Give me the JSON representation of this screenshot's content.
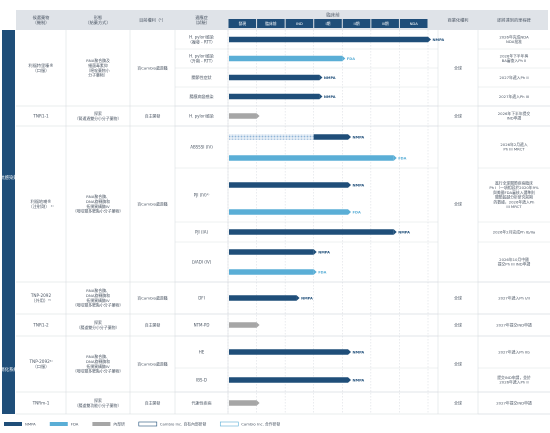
{
  "colors": {
    "nmpa": "#1f4e79",
    "fda": "#5aaed6",
    "internal": "#a6a6a6",
    "header_bg": "#dfe3e8",
    "phase_bg": "#1f4e79",
    "side_bg": "#1f4e79",
    "text": "#4a5563",
    "grid": "#c9ced6",
    "row_line": "#d5d9de"
  },
  "header": {
    "col1": "候選藥物\n（機制）",
    "col2": "形態\n（給藥方式）",
    "col3": "目前權利（¹）",
    "col4": "適應症\n（試驗）",
    "col5": "臨床前",
    "col_rights": "商業化權利",
    "col_status": "即將達到的里程碑"
  },
  "phase_labels": [
    "發現",
    "臨床前",
    "IND",
    "I期",
    "II期",
    "III期",
    "NDA"
  ],
  "side_labels": {
    "top": "抗感染藥",
    "bottom": "消化系統"
  },
  "legend": {
    "nmpa": "NMPA",
    "fda": "FDA",
    "internal": "內部研",
    "cam_internal": "Cambio Inc. 自有內部研發",
    "cam_partner": "Cambio Inc. 合作研發"
  },
  "chart_data": {
    "type": "bar",
    "phases": [
      "發現",
      "臨床前",
      "IND",
      "I期",
      "II期",
      "III期",
      "NDA"
    ],
    "rows": [
      {
        "drug": "利福特里嗪®\n（口服）",
        "form": "RNA聚合酶及\n細菌毒素抑\n（嘧啶藥物小\n分子藥物）",
        "rights": "百Cambio處遊籍",
        "indication": "H. pylori感染\n（複發 - RTT）",
        "bars": [
          {
            "track": "NMPA",
            "phase_value": 7.0,
            "label": "NMPA"
          }
        ],
        "commercial": "全球",
        "milestone": "2026年完成NDA\nNDA批准"
      },
      {
        "drug": "",
        "form": "",
        "rights": "",
        "indication": "H. pylori感染\n（升期 - RTT）",
        "bars": [
          {
            "track": "FDA",
            "phase_value": 4.0,
            "label": "FDA"
          }
        ],
        "commercial": "",
        "milestone": "2026年下半年與\nBA審查入Ph II"
      },
      {
        "drug": "",
        "form": "",
        "rights": "",
        "indication": "關節性症狀",
        "bars": [
          {
            "track": "NMPA",
            "phase_value": 3.2,
            "label": "NMPA"
          }
        ],
        "commercial": "",
        "milestone": "2027年遞入Ph II"
      },
      {
        "drug": "",
        "form": "",
        "rights": "",
        "indication": "腸膜病變感染",
        "bars": [
          {
            "track": "NMPA",
            "phase_value": 3.2,
            "label": "NMPA"
          }
        ],
        "commercial": "",
        "milestone": "2027年遞入Ph III"
      },
      {
        "drug": "TNR1-1",
        "form": "探索\n（腎通過雙分小分子藥物）",
        "rights": "自主開發",
        "indication": "H. pylori感染",
        "bars": [
          {
            "track": "internal",
            "phase_value": 1.0,
            "label": ""
          }
        ],
        "commercial": "全球",
        "milestone": "2026年下半年提交\nIND申請"
      },
      {
        "drug": "利福地喇®\n（注射劑） ²⁾",
        "form": "RNA聚合酶、\nDNA旋轉酶和\n拓撲異構酶IV\n（嘧啶類多靶點小分子藥物）",
        "rights": "百Cambio處遊籍",
        "indication": "ABSSSI (IV)",
        "bars": [
          {
            "track": "internal_hatch",
            "phase_value": 3.0,
            "label": ""
          },
          {
            "track": "NMPA",
            "phase_value": 4.2,
            "label": "NMPA"
          }
        ],
        "commercial": "全球",
        "milestone": "2026年2月遞入\nPh III MRCT"
      },
      {
        "drug": "",
        "form": "",
        "rights": "",
        "indication": "",
        "bars": [
          {
            "track": "FDA",
            "phase_value": 5.8,
            "label": "FDA"
          }
        ],
        "commercial": "",
        "milestone": ""
      },
      {
        "drug": "",
        "form": "",
        "rights": "",
        "indication": "PJI (IV)²⁾",
        "bars": [
          {
            "track": "NMPA",
            "phase_value": 4.2,
            "label": "NMPA"
          }
        ],
        "commercial": "",
        "milestone": "進行全球關節疾病臨床\nPh I（一項相容於2020年9%\n與美國FDA審核入選準則\n關節超越分析研究前期\n的數據，2026年遞入Ph\nIII MRCT"
      },
      {
        "drug": "",
        "form": "",
        "rights": "",
        "indication": "",
        "bars": [
          {
            "track": "FDA",
            "phase_value": 4.2,
            "label": "FDA"
          }
        ],
        "commercial": "",
        "milestone": ""
      },
      {
        "drug": "",
        "form": "",
        "rights": "",
        "indication": "PJI (IA)",
        "bars": [
          {
            "track": "NMPA",
            "phase_value": 5.8,
            "label": "NMPA"
          }
        ],
        "commercial": "",
        "milestone": "2026年2月完成Ph Ib/IIa"
      },
      {
        "drug": "",
        "form": "",
        "rights": "",
        "indication": "LVADI (IV)",
        "bars": [
          {
            "track": "NMPA",
            "phase_value": 3.0,
            "label": "NMPA"
          }
        ],
        "commercial": "",
        "milestone": "2026年10月中國\n提交Ph III IND申請"
      },
      {
        "drug": "",
        "form": "",
        "rights": "",
        "indication": "",
        "bars": [
          {
            "track": "FDA",
            "phase_value": 3.0,
            "label": "FDA"
          }
        ],
        "commercial": "",
        "milestone": ""
      },
      {
        "drug": "TNP-2092\n（外用）³⁾",
        "form": "RNA聚合酶、\nDNA旋轉酶和\n拓撲異構酶IV\n（嘧啶類多靶點小分子藥物）",
        "rights": "百Cambio處遊籍",
        "indication": "DFI",
        "bars": [
          {
            "track": "NMPA",
            "phase_value": 2.4,
            "label": "NMPA"
          }
        ],
        "commercial": "全球",
        "milestone": "2027年遞入Ph I/II"
      },
      {
        "drug": "TNR1-2",
        "form": "探索\n（腸道雙分小分子藥物）",
        "rights": "自主開發",
        "indication": "NTM-PD",
        "bars": [
          {
            "track": "internal",
            "phase_value": 1.0,
            "label": ""
          }
        ],
        "commercial": "全球",
        "milestone": "2027年提交IND申請"
      },
      {
        "drug": "TNP-2092⁴⁾\n（口服）",
        "form": "RNA聚合酶、\nDNA旋轉酶和\n拓撲異構酶IV\n（嘧啶類多靶點小分子藥物）",
        "rights": "百Cambio處遊籍",
        "indication": "HE",
        "bars": [
          {
            "track": "NMPA",
            "phase_value": 4.2,
            "label": "NMPA"
          }
        ],
        "commercial": "全球",
        "milestone": "2027年遞入Ph IIb"
      },
      {
        "drug": "",
        "form": "",
        "rights": "",
        "indication": "IBS-D",
        "bars": [
          {
            "track": "NMPA",
            "phase_value": 4.2,
            "label": "NMPA"
          }
        ],
        "commercial": "",
        "milestone": "提交IND申請，並於\n2026年遞入Ph II"
      },
      {
        "drug": "TNRm-1",
        "form": "探索\n（腸道雙功能小分子藥物）",
        "rights": "自主開發",
        "indication": "代謝性疾病",
        "bars": [
          {
            "track": "internal",
            "phase_value": 1.0,
            "label": ""
          }
        ],
        "commercial": "全球",
        "milestone": "2027年提交IND申請"
      }
    ]
  }
}
